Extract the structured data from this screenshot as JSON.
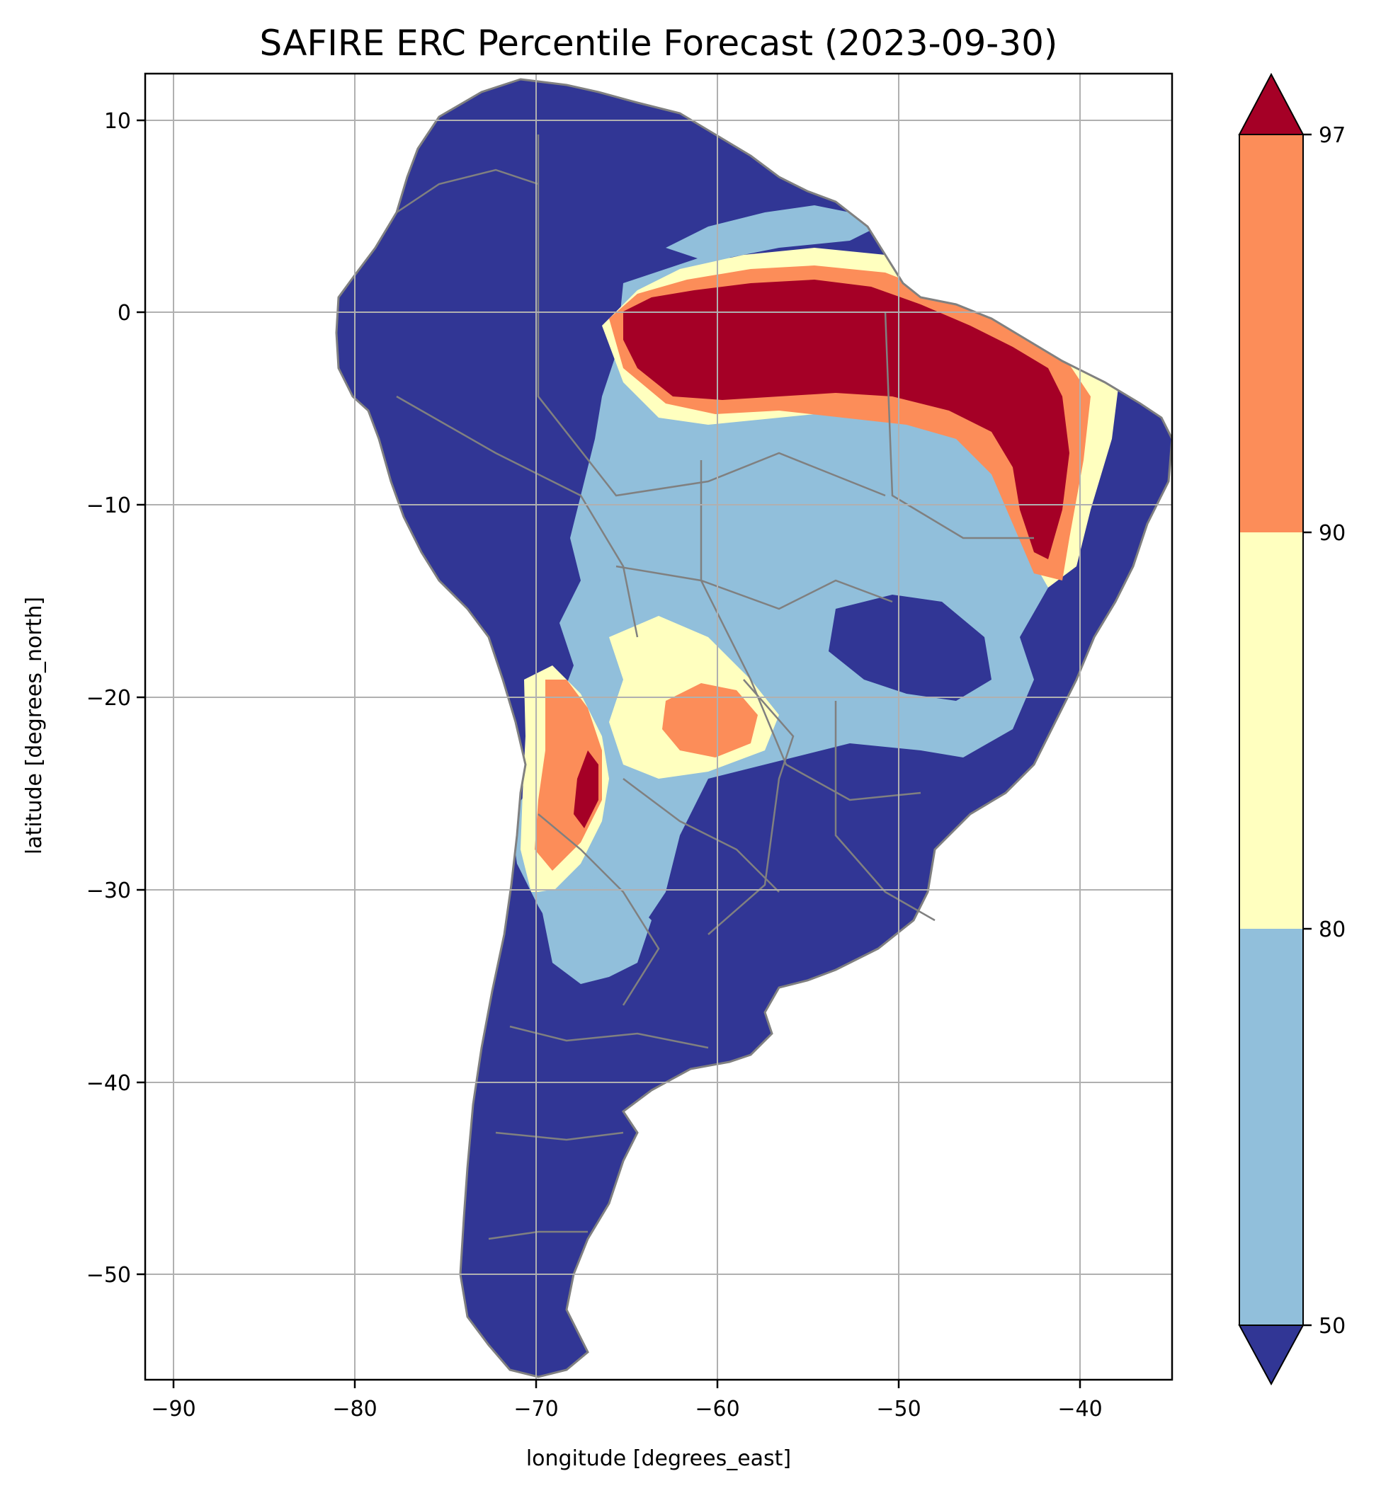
{
  "title": "SAFIRE ERC Percentile Forecast (2023-09-30)",
  "xlabel": "longitude [degrees_east]",
  "ylabel": "latitude [degrees_north]",
  "x_ticks": [
    "−90",
    "−80",
    "−70",
    "−60",
    "−50",
    "−40"
  ],
  "y_ticks": [
    "10",
    "0",
    "−10",
    "−20",
    "−30",
    "−40",
    "−50"
  ],
  "colorbar": {
    "tick_labels": [
      "50",
      "80",
      "90",
      "97"
    ],
    "bins": [
      {
        "range": "<50",
        "color": "#313695"
      },
      {
        "range": "50-80",
        "color": "#91bfdb"
      },
      {
        "range": "80-90",
        "color": "#ffffbf"
      },
      {
        "range": "90-97",
        "color": "#fc8d59"
      },
      {
        "range": ">97",
        "color": "#a50026"
      }
    ]
  },
  "map": {
    "extent": {
      "lon_min": -91.6,
      "lon_max": -35,
      "lat_min": -55.9,
      "lat_max": 12.3
    },
    "grid": true,
    "border_color": "#808080",
    "land_default_color": "#313695"
  }
}
